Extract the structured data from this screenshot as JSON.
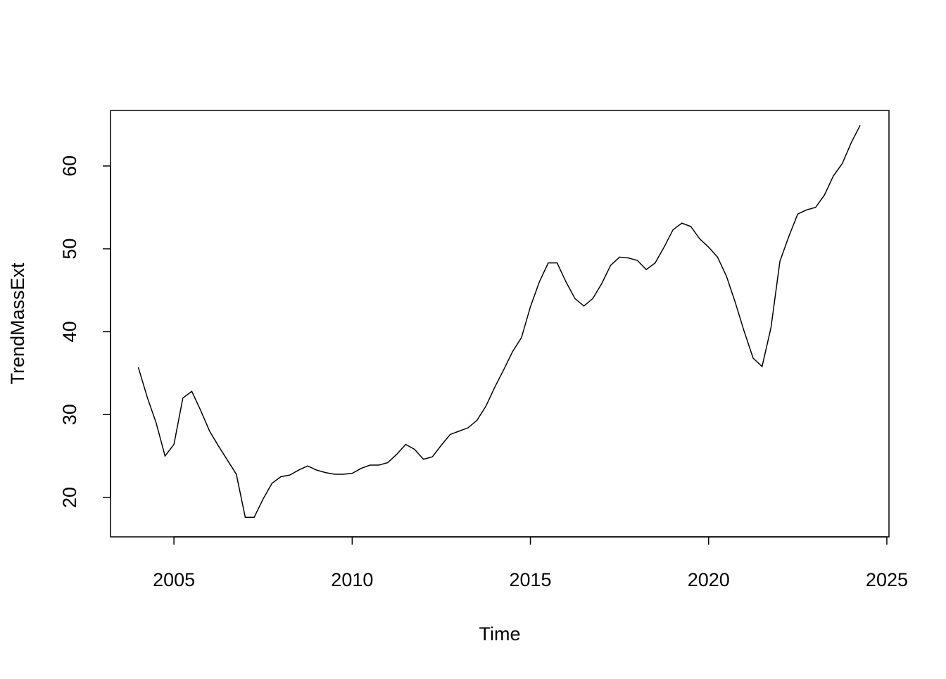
{
  "chart_data": {
    "type": "line",
    "x_label": "Time",
    "y_label": "TrendMassExt",
    "x": [
      2004.0,
      2004.25,
      2004.5,
      2004.75,
      2005.0,
      2005.25,
      2005.5,
      2005.75,
      2006.0,
      2006.25,
      2006.5,
      2006.75,
      2007.0,
      2007.25,
      2007.5,
      2007.75,
      2008.0,
      2008.25,
      2008.5,
      2008.75,
      2009.0,
      2009.25,
      2009.5,
      2009.75,
      2010.0,
      2010.25,
      2010.5,
      2010.75,
      2011.0,
      2011.25,
      2011.5,
      2011.75,
      2012.0,
      2012.25,
      2012.5,
      2012.75,
      2013.0,
      2013.25,
      2013.5,
      2013.75,
      2014.0,
      2014.25,
      2014.5,
      2014.75,
      2015.0,
      2015.25,
      2015.5,
      2015.75,
      2016.0,
      2016.25,
      2016.5,
      2016.75,
      2017.0,
      2017.25,
      2017.5,
      2017.75,
      2018.0,
      2018.25,
      2018.5,
      2018.75,
      2019.0,
      2019.25,
      2019.5,
      2019.75,
      2020.0,
      2020.25,
      2020.5,
      2020.75,
      2021.0,
      2021.25,
      2021.5,
      2021.75,
      2022.0,
      2022.25,
      2022.5,
      2022.75,
      2023.0,
      2023.25,
      2023.5,
      2023.75,
      2024.0,
      2024.25
    ],
    "series": [
      {
        "name": "TrendMassExt",
        "color": "#000000",
        "values": [
          35.7,
          32.1,
          29.0,
          25.0,
          26.4,
          32.0,
          32.8,
          30.5,
          28.0,
          26.2,
          24.5,
          22.8,
          17.6,
          17.6,
          19.8,
          21.7,
          22.5,
          22.7,
          23.3,
          23.8,
          23.3,
          23.0,
          22.8,
          22.8,
          22.9,
          23.5,
          23.9,
          23.9,
          24.2,
          25.2,
          26.4,
          25.8,
          24.6,
          24.9,
          26.3,
          27.6,
          28.0,
          28.4,
          29.3,
          31.0,
          33.3,
          35.4,
          37.6,
          39.3,
          43.0,
          46.0,
          48.3,
          48.3,
          46.0,
          44.0,
          43.1,
          44.0,
          45.8,
          48.0,
          49.0,
          48.9,
          48.6,
          47.5,
          48.3,
          50.2,
          52.3,
          53.1,
          52.7,
          51.2,
          50.2,
          49.0,
          46.7,
          43.5,
          40.0,
          36.8,
          35.8,
          40.5,
          48.5,
          51.5,
          54.2,
          54.7,
          55.0,
          56.5,
          58.8,
          60.3,
          62.8,
          64.9
        ]
      }
    ],
    "xlim": [
      2003.22,
      2025.06
    ],
    "ylim": [
      15.24,
      66.7
    ],
    "xticks": [
      2005,
      2010,
      2015,
      2020,
      2025
    ],
    "yticks": [
      20,
      30,
      40,
      50,
      60
    ]
  }
}
